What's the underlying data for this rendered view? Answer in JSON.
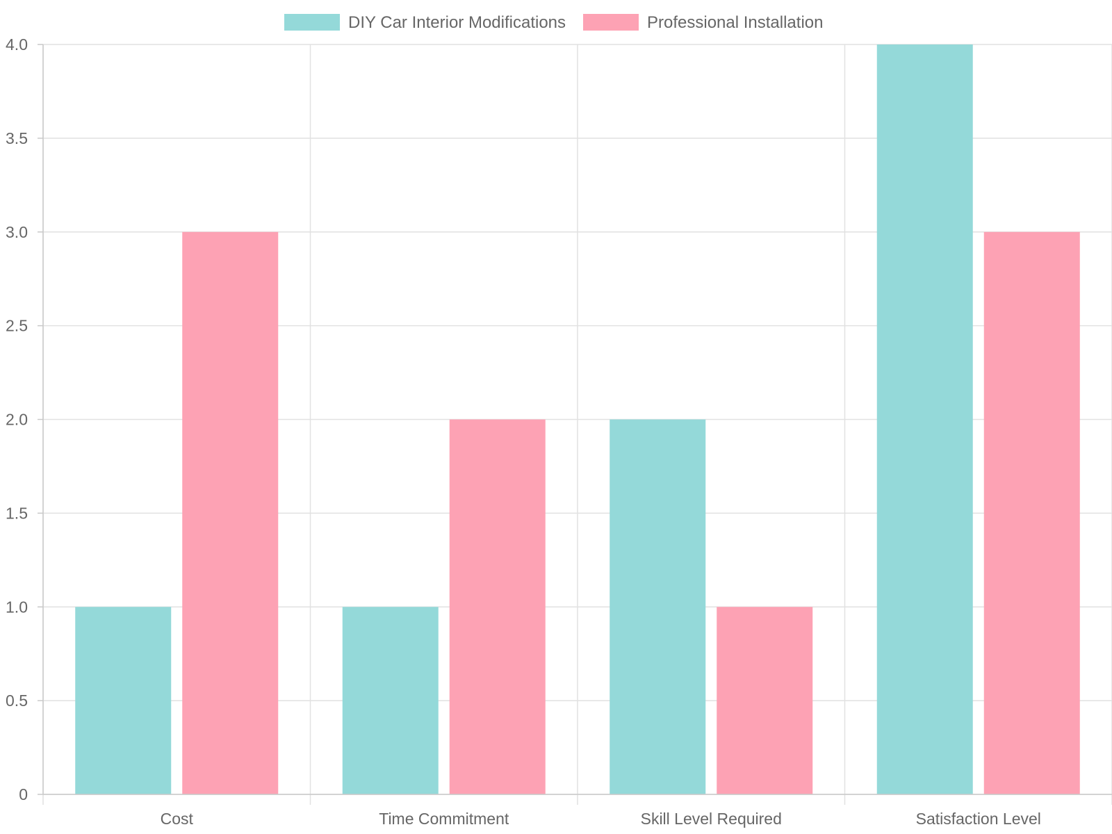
{
  "chart_data": {
    "type": "bar",
    "title": "",
    "xlabel": "",
    "ylabel": "",
    "categories": [
      "Cost",
      "Time Commitment",
      "Skill Level Required",
      "Satisfaction Level"
    ],
    "series": [
      {
        "name": "DIY Car Interior Modifications",
        "values": [
          1,
          1,
          2,
          4
        ],
        "color": "#94d9d9"
      },
      {
        "name": "Professional Installation",
        "values": [
          3,
          2,
          1,
          3
        ],
        "color": "#fda2b4"
      }
    ],
    "ylim": [
      0,
      4
    ],
    "yticks": [
      "0",
      "0.5",
      "1.0",
      "1.5",
      "2.0",
      "2.5",
      "3.0",
      "3.5",
      "4.0"
    ],
    "grid": true,
    "legend_position": "top-center"
  }
}
